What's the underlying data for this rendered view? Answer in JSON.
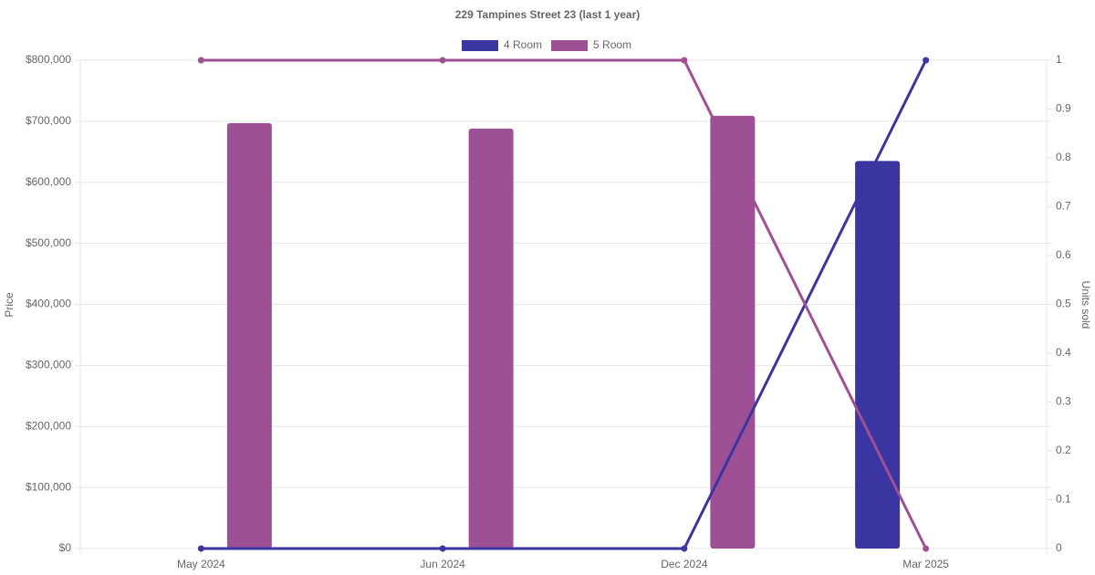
{
  "chart_data": {
    "type": "bar",
    "title": "229 Tampines Street 23 (last 1 year)",
    "y_label": "Price",
    "y2_label": "Units sold",
    "categories": [
      "May 2024",
      "Jun 2024",
      "Dec 2024",
      "Mar 2025"
    ],
    "series": [
      {
        "name": "4 Room",
        "color": "#3a35a0",
        "values": [
          null,
          null,
          null,
          635000
        ],
        "units": [
          0,
          0,
          0,
          1
        ]
      },
      {
        "name": "5 Room",
        "color": "#9e5094",
        "values": [
          697000,
          688000,
          709000,
          null
        ],
        "units": [
          1,
          1,
          1,
          0
        ]
      }
    ],
    "ylim": [
      0,
      800000
    ],
    "yticks": [
      {
        "value": 0,
        "label": "$0"
      },
      {
        "value": 100000,
        "label": "$100,000"
      },
      {
        "value": 200000,
        "label": "$200,000"
      },
      {
        "value": 300000,
        "label": "$300,000"
      },
      {
        "value": 400000,
        "label": "$400,000"
      },
      {
        "value": 500000,
        "label": "$500,000"
      },
      {
        "value": 600000,
        "label": "$600,000"
      },
      {
        "value": 700000,
        "label": "$700,000"
      },
      {
        "value": 800000,
        "label": "$800,000"
      }
    ],
    "y2lim": [
      0,
      1
    ],
    "y2ticks": [
      0,
      0.1,
      0.2,
      0.3,
      0.4,
      0.5,
      0.6,
      0.7,
      0.8,
      0.9,
      1
    ],
    "grid": true,
    "legend": "top"
  }
}
